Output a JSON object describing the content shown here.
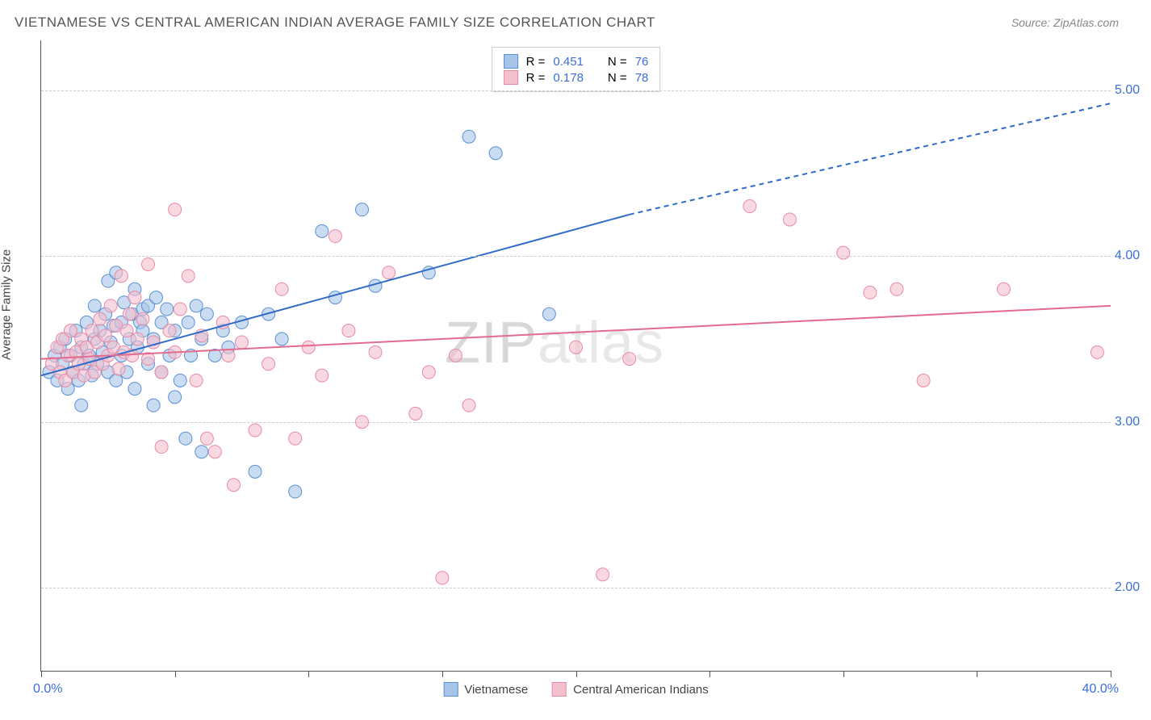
{
  "title": "VIETNAMESE VS CENTRAL AMERICAN INDIAN AVERAGE FAMILY SIZE CORRELATION CHART",
  "source": "Source: ZipAtlas.com",
  "y_axis_label": "Average Family Size",
  "watermark_zip": "ZIP",
  "watermark_atlas": "atlas",
  "chart": {
    "type": "scatter",
    "xlim": [
      0,
      40
    ],
    "ylim": [
      1.5,
      5.3
    ],
    "x_min_label": "0.0%",
    "x_max_label": "40.0%",
    "y_tick_positions": [
      2.0,
      3.0,
      4.0,
      5.0
    ],
    "y_tick_labels": [
      "2.00",
      "3.00",
      "4.00",
      "5.00"
    ],
    "x_tick_positions": [
      0,
      5,
      10,
      15,
      20,
      25,
      30,
      35,
      40
    ],
    "gridline_color": "#cccccc",
    "background_color": "#ffffff",
    "marker_radius": 8,
    "marker_opacity": 0.6,
    "line_width": 2,
    "series": [
      {
        "name": "Vietnamese",
        "fill_color": "#a6c5e8",
        "stroke_color": "#5a8fd4",
        "line_color": "#2e6bc7",
        "R": "0.451",
        "N": "76",
        "trend_solid": {
          "x1": 0,
          "y1": 3.28,
          "x2": 22,
          "y2": 4.25
        },
        "trend_dash": {
          "x1": 22,
          "y1": 4.25,
          "x2": 40,
          "y2": 4.92
        },
        "points": [
          [
            0.3,
            3.3
          ],
          [
            0.5,
            3.4
          ],
          [
            0.6,
            3.25
          ],
          [
            0.7,
            3.45
          ],
          [
            0.8,
            3.35
          ],
          [
            0.9,
            3.5
          ],
          [
            1.0,
            3.2
          ],
          [
            1.1,
            3.4
          ],
          [
            1.2,
            3.3
          ],
          [
            1.3,
            3.55
          ],
          [
            1.4,
            3.25
          ],
          [
            1.5,
            3.45
          ],
          [
            1.5,
            3.1
          ],
          [
            1.6,
            3.35
          ],
          [
            1.7,
            3.6
          ],
          [
            1.8,
            3.4
          ],
          [
            1.9,
            3.28
          ],
          [
            2.0,
            3.5
          ],
          [
            2.0,
            3.7
          ],
          [
            2.1,
            3.35
          ],
          [
            2.2,
            3.55
          ],
          [
            2.3,
            3.42
          ],
          [
            2.4,
            3.65
          ],
          [
            2.5,
            3.3
          ],
          [
            2.5,
            3.85
          ],
          [
            2.6,
            3.48
          ],
          [
            2.7,
            3.58
          ],
          [
            2.8,
            3.25
          ],
          [
            2.8,
            3.9
          ],
          [
            3.0,
            3.6
          ],
          [
            3.0,
            3.4
          ],
          [
            3.1,
            3.72
          ],
          [
            3.2,
            3.3
          ],
          [
            3.3,
            3.5
          ],
          [
            3.4,
            3.65
          ],
          [
            3.5,
            3.8
          ],
          [
            3.5,
            3.2
          ],
          [
            3.6,
            3.45
          ],
          [
            3.7,
            3.6
          ],
          [
            3.8,
            3.55
          ],
          [
            3.8,
            3.68
          ],
          [
            4.0,
            3.35
          ],
          [
            4.0,
            3.7
          ],
          [
            4.2,
            3.5
          ],
          [
            4.3,
            3.75
          ],
          [
            4.5,
            3.6
          ],
          [
            4.5,
            3.3
          ],
          [
            4.7,
            3.68
          ],
          [
            4.8,
            3.4
          ],
          [
            5.0,
            3.55
          ],
          [
            5.0,
            3.15
          ],
          [
            5.2,
            3.25
          ],
          [
            5.4,
            2.9
          ],
          [
            5.5,
            3.6
          ],
          [
            5.6,
            3.4
          ],
          [
            5.8,
            3.7
          ],
          [
            6.0,
            2.82
          ],
          [
            6.0,
            3.5
          ],
          [
            6.2,
            3.65
          ],
          [
            6.5,
            3.4
          ],
          [
            6.8,
            3.55
          ],
          [
            7.0,
            3.45
          ],
          [
            7.5,
            3.6
          ],
          [
            8.0,
            2.7
          ],
          [
            8.5,
            3.65
          ],
          [
            9.0,
            3.5
          ],
          [
            9.5,
            2.58
          ],
          [
            10.5,
            4.15
          ],
          [
            11.0,
            3.75
          ],
          [
            12.0,
            4.28
          ],
          [
            12.5,
            3.82
          ],
          [
            16.0,
            4.72
          ],
          [
            17.0,
            4.62
          ],
          [
            19.0,
            3.65
          ],
          [
            14.5,
            3.9
          ],
          [
            4.2,
            3.1
          ]
        ]
      },
      {
        "name": "Central American Indians",
        "fill_color": "#f4c0ce",
        "stroke_color": "#e88aa4",
        "line_color": "#e36b8f",
        "R": "0.178",
        "N": "78",
        "trend_solid": {
          "x1": 0,
          "y1": 3.38,
          "x2": 40,
          "y2": 3.7
        },
        "trend_dash": null,
        "points": [
          [
            0.4,
            3.35
          ],
          [
            0.6,
            3.45
          ],
          [
            0.7,
            3.3
          ],
          [
            0.8,
            3.5
          ],
          [
            0.9,
            3.25
          ],
          [
            1.0,
            3.4
          ],
          [
            1.1,
            3.55
          ],
          [
            1.2,
            3.3
          ],
          [
            1.3,
            3.42
          ],
          [
            1.4,
            3.35
          ],
          [
            1.5,
            3.5
          ],
          [
            1.6,
            3.28
          ],
          [
            1.7,
            3.45
          ],
          [
            1.8,
            3.38
          ],
          [
            1.9,
            3.55
          ],
          [
            2.0,
            3.3
          ],
          [
            2.1,
            3.48
          ],
          [
            2.2,
            3.62
          ],
          [
            2.3,
            3.35
          ],
          [
            2.4,
            3.52
          ],
          [
            2.5,
            3.4
          ],
          [
            2.6,
            3.7
          ],
          [
            2.7,
            3.45
          ],
          [
            2.8,
            3.58
          ],
          [
            2.9,
            3.32
          ],
          [
            3.0,
            3.88
          ],
          [
            3.1,
            3.42
          ],
          [
            3.2,
            3.55
          ],
          [
            3.3,
            3.65
          ],
          [
            3.4,
            3.4
          ],
          [
            3.5,
            3.75
          ],
          [
            3.6,
            3.5
          ],
          [
            3.8,
            3.62
          ],
          [
            4.0,
            3.38
          ],
          [
            4.0,
            3.95
          ],
          [
            4.2,
            3.48
          ],
          [
            4.5,
            3.3
          ],
          [
            4.5,
            2.85
          ],
          [
            4.8,
            3.55
          ],
          [
            5.0,
            3.42
          ],
          [
            5.0,
            4.28
          ],
          [
            5.2,
            3.68
          ],
          [
            5.5,
            3.88
          ],
          [
            5.8,
            3.25
          ],
          [
            6.0,
            3.52
          ],
          [
            6.2,
            2.9
          ],
          [
            6.5,
            2.82
          ],
          [
            6.8,
            3.6
          ],
          [
            7.0,
            3.4
          ],
          [
            7.2,
            2.62
          ],
          [
            7.5,
            3.48
          ],
          [
            8.0,
            2.95
          ],
          [
            8.5,
            3.35
          ],
          [
            9.0,
            3.8
          ],
          [
            9.5,
            2.9
          ],
          [
            10.0,
            3.45
          ],
          [
            10.5,
            3.28
          ],
          [
            11.0,
            4.12
          ],
          [
            11.5,
            3.55
          ],
          [
            12.0,
            3.0
          ],
          [
            12.5,
            3.42
          ],
          [
            13.0,
            3.9
          ],
          [
            14.0,
            3.05
          ],
          [
            14.5,
            3.3
          ],
          [
            15.0,
            2.06
          ],
          [
            15.5,
            3.4
          ],
          [
            16.0,
            3.1
          ],
          [
            20.0,
            3.45
          ],
          [
            21.0,
            2.08
          ],
          [
            22.0,
            3.38
          ],
          [
            26.5,
            4.3
          ],
          [
            28.0,
            4.22
          ],
          [
            30.0,
            4.02
          ],
          [
            31.0,
            3.78
          ],
          [
            32.0,
            3.8
          ],
          [
            33.0,
            3.25
          ],
          [
            36.0,
            3.8
          ],
          [
            39.5,
            3.42
          ]
        ]
      }
    ]
  },
  "legend_labels": {
    "r_prefix": "R =",
    "n_prefix": "N ="
  }
}
